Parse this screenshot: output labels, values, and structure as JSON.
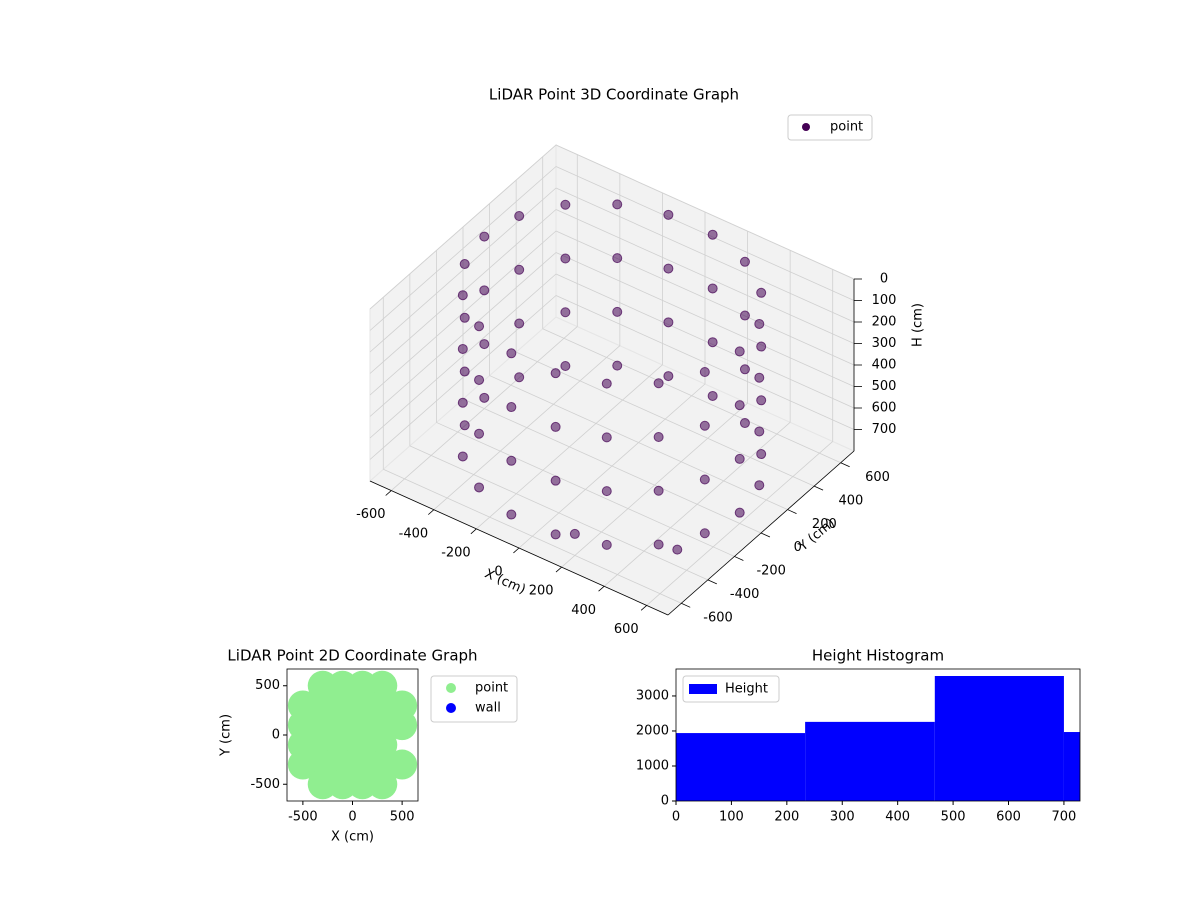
{
  "chart_data": [
    {
      "type": "scatter3d",
      "title": "LiDAR Point 3D Coordinate Graph",
      "xlabel": "X (cm)",
      "ylabel": "Y (cm)",
      "zlabel": "H (cm)",
      "xlim": [
        -700,
        700
      ],
      "ylim": [
        -700,
        700
      ],
      "zlim": [
        0,
        800
      ],
      "z_inverted": true,
      "xticks": [
        -600,
        -400,
        -200,
        0,
        200,
        400,
        600
      ],
      "yticks": [
        -600,
        -400,
        -200,
        0,
        200,
        400,
        600
      ],
      "zticks": [
        0,
        100,
        200,
        300,
        400,
        500,
        600,
        700
      ],
      "grid": true,
      "legend": "upper right",
      "series": [
        {
          "name": "point",
          "color": "#440154",
          "x": [
            600,
            564,
            460,
            300,
            104,
            -104,
            -300,
            -460,
            -564,
            -600,
            -564,
            -460,
            -300,
            -104,
            104,
            300,
            460,
            564,
            600,
            564,
            460,
            300,
            104,
            -104,
            -300,
            -460,
            -564,
            -600,
            -564,
            -460,
            -300,
            -104,
            104,
            300,
            460,
            564,
            600,
            564,
            460,
            300,
            104,
            -104,
            -300,
            -460,
            -564,
            -600,
            -564,
            -460,
            -300,
            -104,
            104,
            300,
            460,
            564,
            600,
            564,
            460,
            300,
            104,
            -104,
            -300,
            -460,
            -564,
            -600,
            -564,
            -460,
            -300,
            -104,
            104,
            300,
            460,
            564,
            200,
            650
          ],
          "y": [
            0,
            205,
            386,
            520,
            591,
            591,
            520,
            386,
            205,
            0,
            -205,
            -386,
            -520,
            -591,
            -591,
            -520,
            -386,
            -205,
            0,
            205,
            386,
            520,
            591,
            591,
            520,
            386,
            205,
            0,
            -205,
            -386,
            -520,
            -591,
            -591,
            -520,
            -386,
            -205,
            0,
            205,
            386,
            520,
            591,
            591,
            520,
            386,
            205,
            0,
            -205,
            -386,
            -520,
            -591,
            -591,
            -520,
            -386,
            -205,
            0,
            205,
            386,
            520,
            591,
            591,
            520,
            386,
            205,
            0,
            -205,
            -386,
            -520,
            -591,
            -591,
            -520,
            -386,
            -205,
            -600,
            -550
          ],
          "h": [
            0,
            0,
            0,
            0,
            0,
            0,
            0,
            0,
            0,
            0,
            0,
            0,
            0,
            0,
            0,
            0,
            0,
            0,
            250,
            250,
            250,
            250,
            250,
            250,
            250,
            250,
            250,
            250,
            250,
            250,
            250,
            250,
            250,
            250,
            250,
            250,
            500,
            500,
            500,
            500,
            500,
            500,
            500,
            500,
            500,
            500,
            500,
            500,
            500,
            500,
            500,
            500,
            500,
            500,
            750,
            750,
            750,
            750,
            750,
            750,
            750,
            750,
            750,
            750,
            750,
            750,
            750,
            750,
            750,
            750,
            750,
            750,
            700,
            600
          ]
        }
      ]
    },
    {
      "type": "scatter",
      "title": "LiDAR Point 2D Coordinate Graph",
      "xlabel": "X (cm)",
      "ylabel": "Y (cm)",
      "xlim": [
        -660,
        660
      ],
      "ylim": [
        -670,
        670
      ],
      "xticks": [
        -500,
        0,
        500
      ],
      "yticks": [
        -500,
        0,
        500
      ],
      "legend": "outside right",
      "series": [
        {
          "name": "point",
          "color": "#90ee90",
          "x": [
            -300,
            -100,
            100,
            300,
            -500,
            -300,
            -100,
            100,
            300,
            500,
            -500,
            -300,
            -100,
            100,
            300,
            500,
            -500,
            -300,
            -100,
            100,
            300,
            -500,
            -300,
            -100,
            100,
            300,
            500,
            -300,
            -100,
            100,
            300
          ],
          "y": [
            500,
            500,
            500,
            500,
            300,
            300,
            300,
            300,
            300,
            300,
            100,
            100,
            100,
            100,
            100,
            100,
            -100,
            -100,
            -100,
            -100,
            -100,
            -300,
            -300,
            -300,
            -300,
            -300,
            -300,
            -500,
            -500,
            -500,
            -500
          ]
        },
        {
          "name": "wall",
          "color": "#0000ff",
          "x": [],
          "y": []
        }
      ]
    },
    {
      "type": "histogram",
      "title": "Height Histogram",
      "legend_label": "Height",
      "color": "#0000ff",
      "legend": "upper left",
      "bins": [
        0,
        233,
        467,
        700,
        729
      ],
      "counts": [
        1940,
        2260,
        3570,
        1970
      ],
      "xlim": [
        0,
        729
      ],
      "ylim": [
        0,
        3770
      ],
      "xticks": [
        0,
        100,
        200,
        300,
        400,
        500,
        600,
        700
      ],
      "yticks": [
        0,
        1000,
        2000,
        3000
      ]
    }
  ]
}
